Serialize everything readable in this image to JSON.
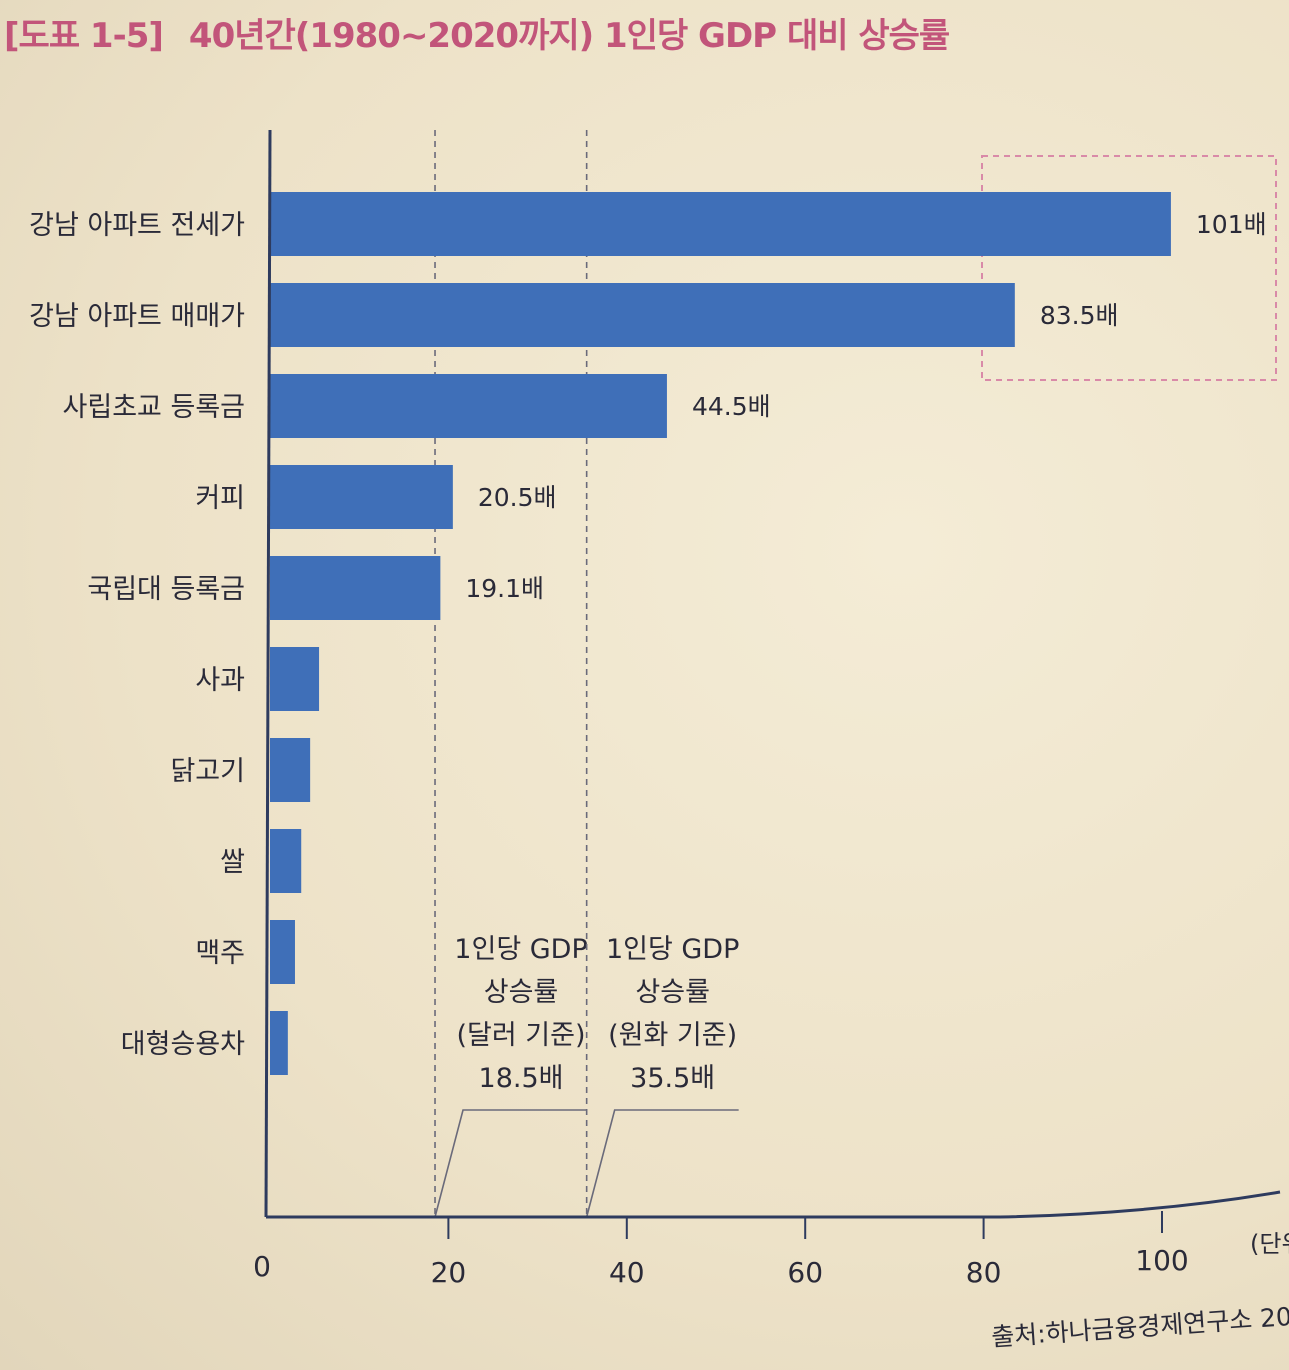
{
  "title": {
    "tag": "[도표 1-5]",
    "text": "40년간(1980~2020까지) 1인당 GDP 대비 상승률"
  },
  "source": "출처:하나금융경제연구소 20",
  "colors": {
    "bar": "#3f6fb8",
    "axis": "#2e3b5e",
    "title": "#c2557a",
    "highlight_box": "#d98aa8",
    "ref_line": "#6a6a7a"
  },
  "chart_data": {
    "type": "bar",
    "orientation": "horizontal",
    "categories": [
      "강남 아파트 전세가",
      "강남 아파트 매매가",
      "사립초교 등록금",
      "커피",
      "국립대 등록금",
      "사과",
      "닭고기",
      "쌀",
      "맥주",
      "대형승용차"
    ],
    "values": [
      101,
      83.5,
      44.5,
      20.5,
      19.1,
      5.5,
      4.5,
      3.5,
      2.8,
      2.0
    ],
    "value_labels": [
      "101배",
      "83.5배",
      "44.5배",
      "20.5배",
      "19.1배",
      "",
      "",
      "",
      "",
      ""
    ],
    "xlim": [
      0,
      100
    ],
    "x_ticks": [
      0,
      20,
      40,
      60,
      80,
      100
    ],
    "x_unit": "(단위",
    "grid": false,
    "reference_lines": [
      {
        "value": 18.5,
        "label_lines": [
          "1인당 GDP",
          "상승률",
          "(달러 기준)",
          "18.5배"
        ]
      },
      {
        "value": 35.5,
        "label_lines": [
          "1인당 GDP",
          "상승률",
          "(원화 기준)",
          "35.5배"
        ]
      }
    ],
    "highlight": {
      "categories": [
        "강남 아파트 전세가",
        "강남 아파트 매매가"
      ]
    }
  }
}
